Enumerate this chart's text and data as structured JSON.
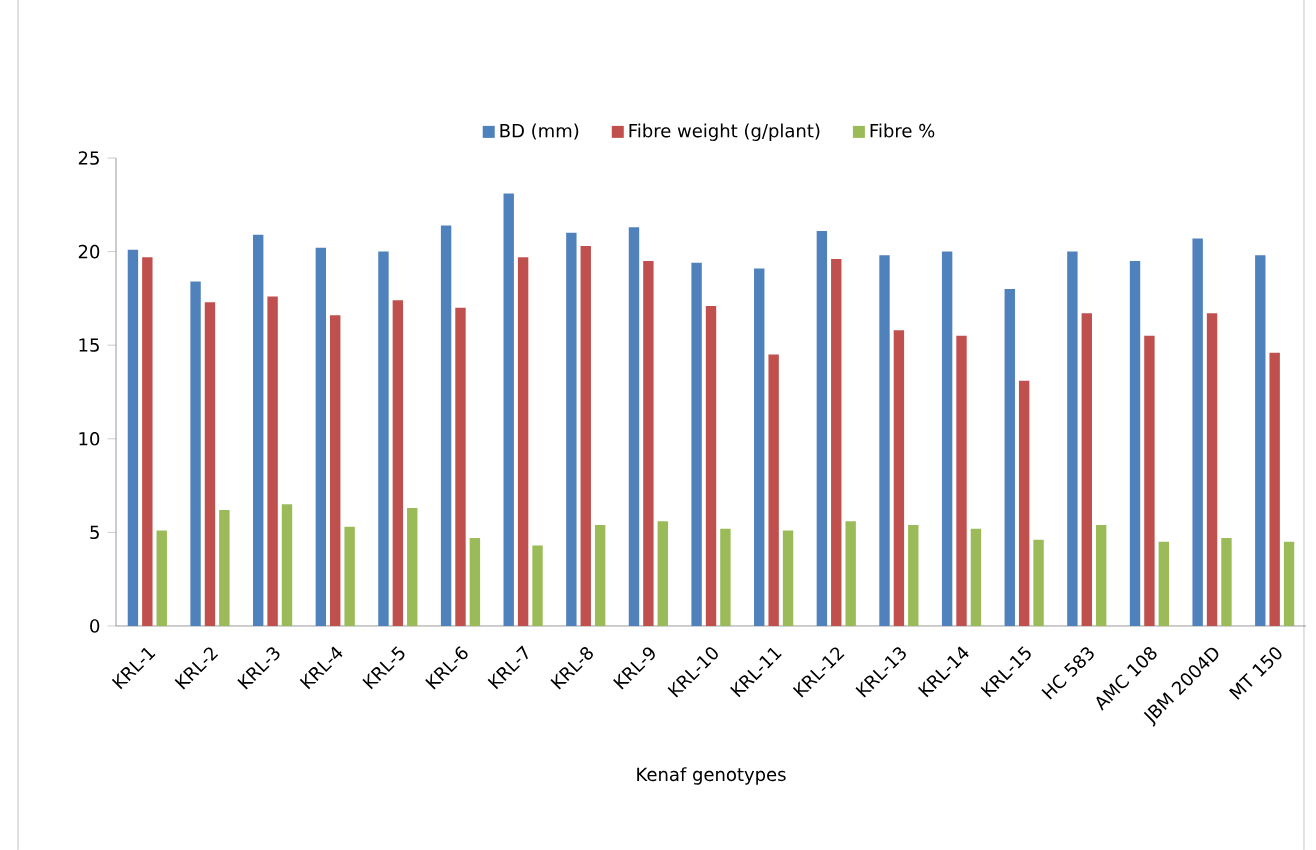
{
  "chart_data": {
    "type": "bar",
    "xlabel": "Kenaf genotypes",
    "categories": [
      "KRL-1",
      "KRL-2",
      "KRL-3",
      "KRL-4",
      "KRL-5",
      "KRL-6",
      "KRL-7",
      "KRL-8",
      "KRL-9",
      "KRL-10",
      "KRL-11",
      "KRL-12",
      "KRL-13",
      "KRL-14",
      "KRL-15",
      "HC 583",
      "AMC 108",
      "JBM 2004D",
      "MT 150"
    ],
    "series": [
      {
        "name": "BD (mm)",
        "color": "#4f81bd",
        "values": [
          20.1,
          18.4,
          20.9,
          20.2,
          20.0,
          21.4,
          23.1,
          21.0,
          21.3,
          19.4,
          19.1,
          21.1,
          19.8,
          20.0,
          18.0,
          20.0,
          19.5,
          20.7,
          19.8
        ]
      },
      {
        "name": "Fibre weight (g/plant)",
        "color": "#c0504d",
        "values": [
          19.7,
          17.3,
          17.6,
          16.6,
          17.4,
          17.0,
          19.7,
          20.3,
          19.5,
          17.1,
          14.5,
          19.6,
          15.8,
          15.5,
          13.1,
          16.7,
          15.5,
          16.7,
          14.6
        ]
      },
      {
        "name": "Fibre %",
        "color": "#9bbb59",
        "values": [
          5.1,
          6.2,
          6.5,
          5.3,
          6.3,
          4.7,
          4.3,
          5.4,
          5.6,
          5.2,
          5.1,
          5.6,
          5.4,
          5.2,
          4.6,
          5.4,
          4.5,
          4.7,
          4.5
        ]
      }
    ],
    "ylim": [
      0,
      25
    ],
    "yticks": [
      0,
      5,
      10,
      15,
      20,
      25
    ],
    "grid": false,
    "legend": "top"
  }
}
